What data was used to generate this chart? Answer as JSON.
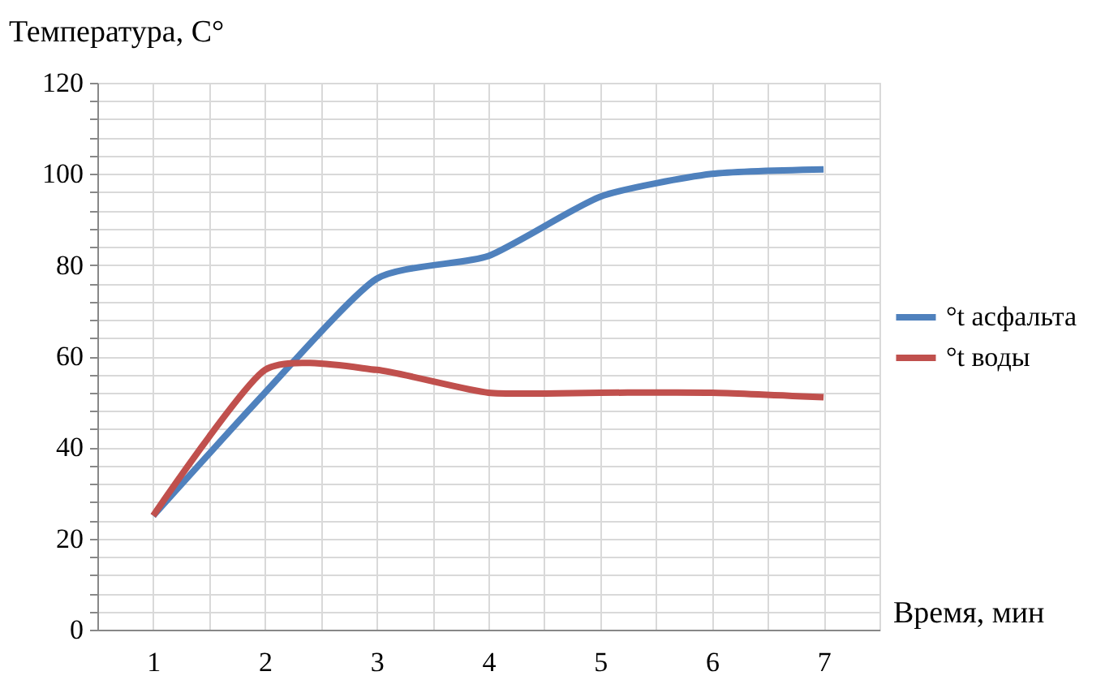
{
  "chart_data": {
    "type": "line",
    "ylabel": "Температура, C°",
    "xlabel": "Время, мин",
    "categories": [
      "1",
      "2",
      "3",
      "4",
      "5",
      "6",
      "7"
    ],
    "series": [
      {
        "name": "°t асфальта",
        "color": "#4f81bd",
        "values": [
          25,
          52,
          77,
          82,
          95,
          100,
          101
        ]
      },
      {
        "name": "°t воды",
        "color": "#c0504d",
        "values": [
          25,
          57,
          57,
          52,
          52,
          52,
          51
        ]
      }
    ],
    "ylim": [
      0,
      120
    ],
    "yticks": [
      0,
      20,
      40,
      60,
      80,
      100,
      120
    ],
    "grid": true,
    "legend": "right",
    "marker": "none",
    "line_style": "solid"
  }
}
